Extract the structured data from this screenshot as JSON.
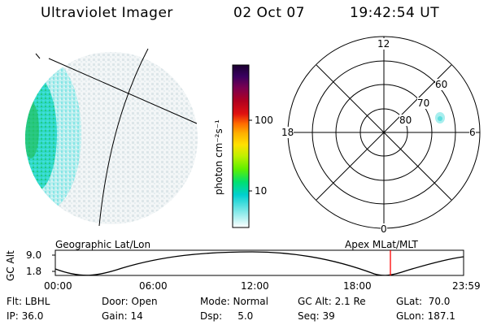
{
  "header": {
    "title": "Ultraviolet Imager",
    "date": "02 Oct 07",
    "time": "19:42:54 UT"
  },
  "colorbar": {
    "unit_label": "photon cm⁻²s⁻¹",
    "ticks": [
      "100",
      "10"
    ],
    "scale": "log",
    "colors": [
      "#1a0030",
      "#3a0060",
      "#7a0050",
      "#b00020",
      "#e01010",
      "#ff6a00",
      "#ffb000",
      "#ffe000",
      "#c0f000",
      "#60f000",
      "#00e070",
      "#00d0d0",
      "#80e8e8",
      "#ffffff"
    ]
  },
  "polar": {
    "mlt_labels": [
      "12",
      "18",
      "6",
      "0"
    ],
    "lat_labels": [
      "60",
      "70",
      "80"
    ]
  },
  "track": {
    "left_label": "Geographic Lat/Lon",
    "right_label": "Apex MLat/MLT",
    "y_axis_label": "GC Alt",
    "y_ticks": [
      "9.0",
      "1.8"
    ],
    "x_ticks": [
      "00:00",
      "06:00",
      "12:00",
      "18:00",
      "23:59"
    ],
    "marker_color": "#ff0000"
  },
  "info": {
    "flt": "Flt: LBHL",
    "door": "Door: Open",
    "mode": "Mode: Normal",
    "gc_alt": "GC Alt: 2.1 Re",
    "glat": "GLat:  70.0",
    "ip": "IP: 36.0",
    "gain": "Gain: 14",
    "dsp": "Dsp:     5.0",
    "seq": "Seq: 39",
    "glon": "GLon: 187.1"
  }
}
